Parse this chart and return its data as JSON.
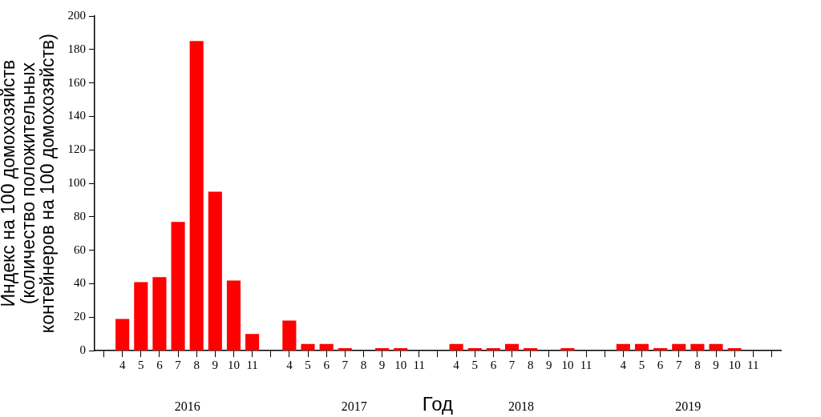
{
  "chart_data": {
    "type": "bar",
    "ylabel": "Индекс на 100 домохозяйств\n(количество положительных\nконтейнеров на 100 домохозяйств)",
    "xlabel": "Год",
    "categories": [
      null,
      "4",
      "5",
      "6",
      "7",
      "8",
      "9",
      "10",
      "11",
      null,
      "4",
      "5",
      "6",
      "7",
      "8",
      "9",
      "10",
      "11",
      null,
      "4",
      "5",
      "6",
      "7",
      "8",
      "9",
      "10",
      "11",
      null,
      "4",
      "5",
      "6",
      "7",
      "8",
      "9",
      "10",
      "11",
      null
    ],
    "values": [
      null,
      19,
      41,
      44,
      77,
      185,
      95,
      42,
      10,
      null,
      18,
      4,
      4,
      1.5,
      0,
      1.5,
      1.5,
      0,
      null,
      4,
      1.5,
      1.5,
      4,
      1.5,
      0,
      1.5,
      0,
      null,
      4,
      4,
      1.5,
      4,
      4,
      4,
      1.5,
      0,
      null
    ],
    "color": "#ff0000",
    "annotations": [
      "2016",
      "2017",
      "2018",
      "2019"
    ],
    "ylim": [
      0,
      200
    ],
    "yticks": [
      0,
      20,
      40,
      60,
      80,
      100,
      120,
      140,
      160,
      180,
      200
    ],
    "grid": false,
    "legend": false
  }
}
